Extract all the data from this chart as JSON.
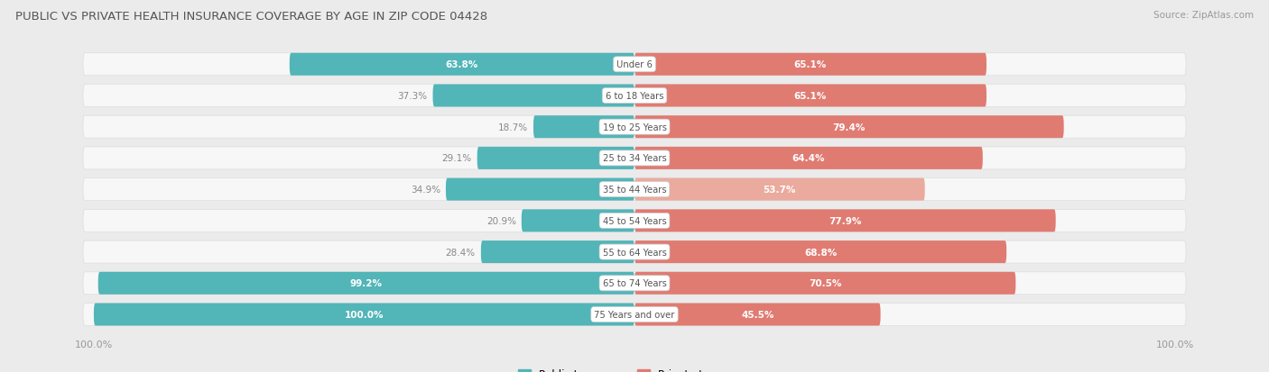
{
  "title": "PUBLIC VS PRIVATE HEALTH INSURANCE COVERAGE BY AGE IN ZIP CODE 04428",
  "source": "Source: ZipAtlas.com",
  "categories": [
    "Under 6",
    "6 to 18 Years",
    "19 to 25 Years",
    "25 to 34 Years",
    "35 to 44 Years",
    "45 to 54 Years",
    "55 to 64 Years",
    "65 to 74 Years",
    "75 Years and over"
  ],
  "public_values": [
    63.8,
    37.3,
    18.7,
    29.1,
    34.9,
    20.9,
    28.4,
    99.2,
    100.0
  ],
  "private_values": [
    65.1,
    65.1,
    79.4,
    64.4,
    53.7,
    77.9,
    68.8,
    70.5,
    45.5
  ],
  "public_color": "#52b5b8",
  "private_colors": [
    "#e07b72",
    "#e07b72",
    "#e07b72",
    "#e07b72",
    "#eaaa9e",
    "#e07b72",
    "#e07b72",
    "#e07b72",
    "#e07b72"
  ],
  "bg_color": "#ebebeb",
  "row_bg_color": "#f7f7f7",
  "row_border_color": "#dddddd",
  "title_color": "#555555",
  "source_color": "#999999",
  "value_color_white": "#ffffff",
  "value_color_dark": "#888888",
  "center_label_color": "#555555",
  "legend_public": "Public Insurance",
  "legend_private": "Private Insurance",
  "max_val": 100.0,
  "inside_threshold": 45
}
